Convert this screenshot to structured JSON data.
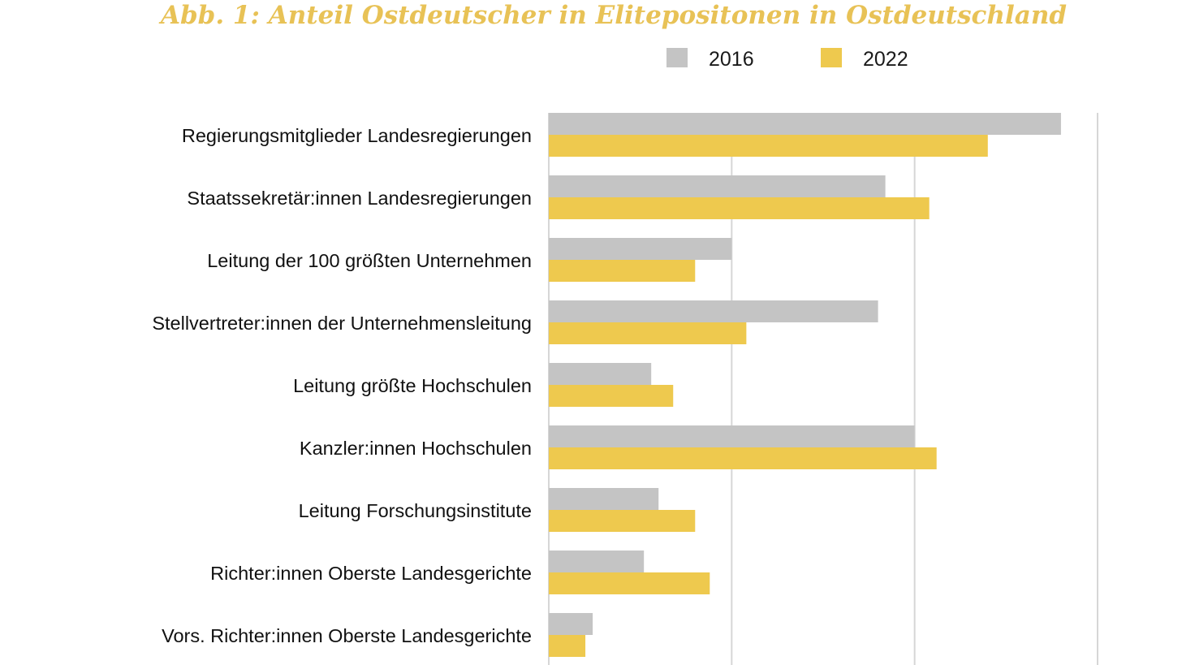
{
  "chart_data": {
    "type": "bar",
    "orientation": "horizontal",
    "title": "Abb. 1: Anteil Ostdeutscher in Elitepositonen in Ostdeutschland",
    "categories": [
      "Regierungsmitglieder Landesregierungen",
      "Staatssekretär:innen Landesregierungen",
      "Leitung der 100 größten Unternehmen",
      "Stellvertreter:innen der Unternehmensleitung",
      "Leitung größte Hochschulen",
      "Kanzler:innen Hochschulen",
      "Leitung Forschungsinstitute",
      "Richter:innen Oberste Landesgerichte",
      "Vors. Richter:innen Oberste Landesgerichte"
    ],
    "series": [
      {
        "name": "2016",
        "color": "#c4c4c4",
        "values": [
          70,
          46,
          25,
          45,
          14,
          50,
          15,
          13,
          6
        ]
      },
      {
        "name": "2022",
        "color": "#eec94e",
        "values": [
          60,
          52,
          20,
          27,
          17,
          53,
          20,
          22,
          5
        ]
      }
    ],
    "xlim": [
      0,
      75
    ],
    "gridlines": [
      25,
      50,
      75
    ],
    "grid": true,
    "xlabel": "",
    "ylabel": "",
    "legend_position": "top-right"
  }
}
